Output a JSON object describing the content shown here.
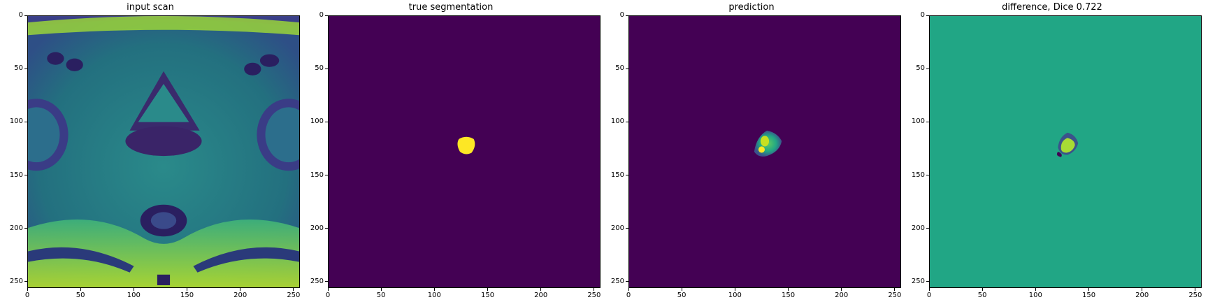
{
  "figure": {
    "panels": [
      {
        "id": "scan",
        "title": "input scan"
      },
      {
        "id": "truth",
        "title": "true segmentation"
      },
      {
        "id": "pred",
        "title": "prediction"
      },
      {
        "id": "diff",
        "title": "difference, Dice 0.722"
      }
    ],
    "axis": {
      "xlim": [
        0,
        256
      ],
      "ylim": [
        256,
        0
      ],
      "x_ticks": [
        "0",
        "50",
        "100",
        "150",
        "200",
        "250"
      ],
      "y_ticks": [
        "0",
        "50",
        "100",
        "150",
        "200",
        "250"
      ]
    },
    "colormap": "viridis",
    "colors": {
      "viridis_min": "#440154",
      "viridis_low": "#3b528b",
      "viridis_mid": "#21a685",
      "viridis_high": "#5ec962",
      "viridis_max": "#fde725"
    }
  }
}
